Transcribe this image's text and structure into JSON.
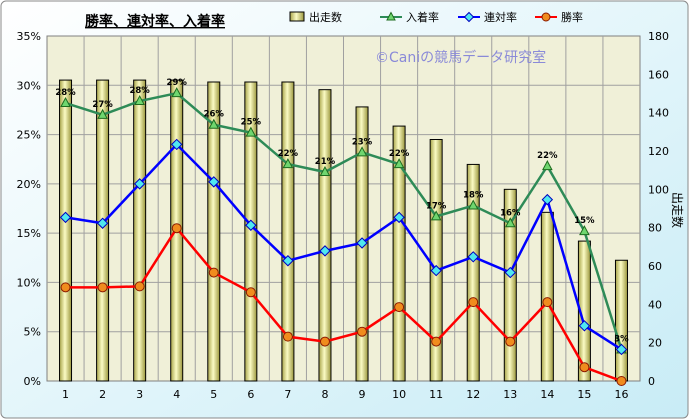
{
  "chart_data": {
    "type": "bar+line",
    "title": "勝率、連対率、入着率",
    "watermark": "©Caniの競馬データ研究室",
    "categories": [
      "1",
      "2",
      "3",
      "4",
      "5",
      "6",
      "7",
      "8",
      "9",
      "10",
      "11",
      "12",
      "13",
      "14",
      "15",
      "16"
    ],
    "x": [
      1,
      2,
      3,
      4,
      5,
      6,
      7,
      8,
      9,
      10,
      11,
      12,
      13,
      14,
      15,
      16
    ],
    "bars": {
      "name": "出走数",
      "axis": "right",
      "values": [
        157,
        157,
        157,
        157,
        156,
        156,
        156,
        152,
        143,
        133,
        126,
        113,
        100,
        88,
        73,
        63
      ],
      "color": "#ecec98"
    },
    "series": [
      {
        "name": "入着率",
        "axis": "left",
        "color": "#2e8b57",
        "marker": "triangle",
        "values": [
          28.2,
          27.0,
          28.4,
          29.2,
          26.0,
          25.2,
          22.0,
          21.2,
          23.2,
          22.0,
          16.7,
          17.8,
          16.0,
          21.8,
          15.2,
          3.2
        ],
        "labels": [
          "28%",
          "27%",
          "28%",
          "29%",
          "26%",
          "25%",
          "22%",
          "21%",
          "23%",
          "22%",
          "17%",
          "18%",
          "16%",
          "22%",
          "15%",
          "3%"
        ]
      },
      {
        "name": "連対率",
        "axis": "left",
        "color": "#0000ff",
        "marker": "diamond",
        "values": [
          16.6,
          16.0,
          20.0,
          24.0,
          20.2,
          15.8,
          12.2,
          13.2,
          14.0,
          16.6,
          11.2,
          12.6,
          11.0,
          18.4,
          5.6,
          3.2
        ]
      },
      {
        "name": "勝率",
        "axis": "left",
        "color": "#ff0000",
        "marker": "circle",
        "values": [
          9.5,
          9.5,
          9.6,
          15.5,
          11.0,
          9.0,
          4.5,
          4.0,
          5.0,
          7.5,
          4.0,
          8.0,
          4.0,
          8.0,
          1.4,
          0.0
        ]
      }
    ],
    "y_left": {
      "min": 0,
      "max": 35,
      "step": 5,
      "tick_labels": [
        "0%",
        "5%",
        "10%",
        "15%",
        "20%",
        "25%",
        "30%",
        "35%"
      ]
    },
    "y_right": {
      "min": 0,
      "max": 180,
      "step": 20,
      "label": "出走数",
      "tick_labels": [
        "0",
        "20",
        "40",
        "60",
        "80",
        "100",
        "120",
        "140",
        "160",
        "180"
      ]
    },
    "legend": {
      "placement": "top",
      "items": [
        "出走数",
        "入着率",
        "連対率",
        "勝率"
      ]
    },
    "grid": true,
    "plot_background": "#f0f0d8"
  }
}
